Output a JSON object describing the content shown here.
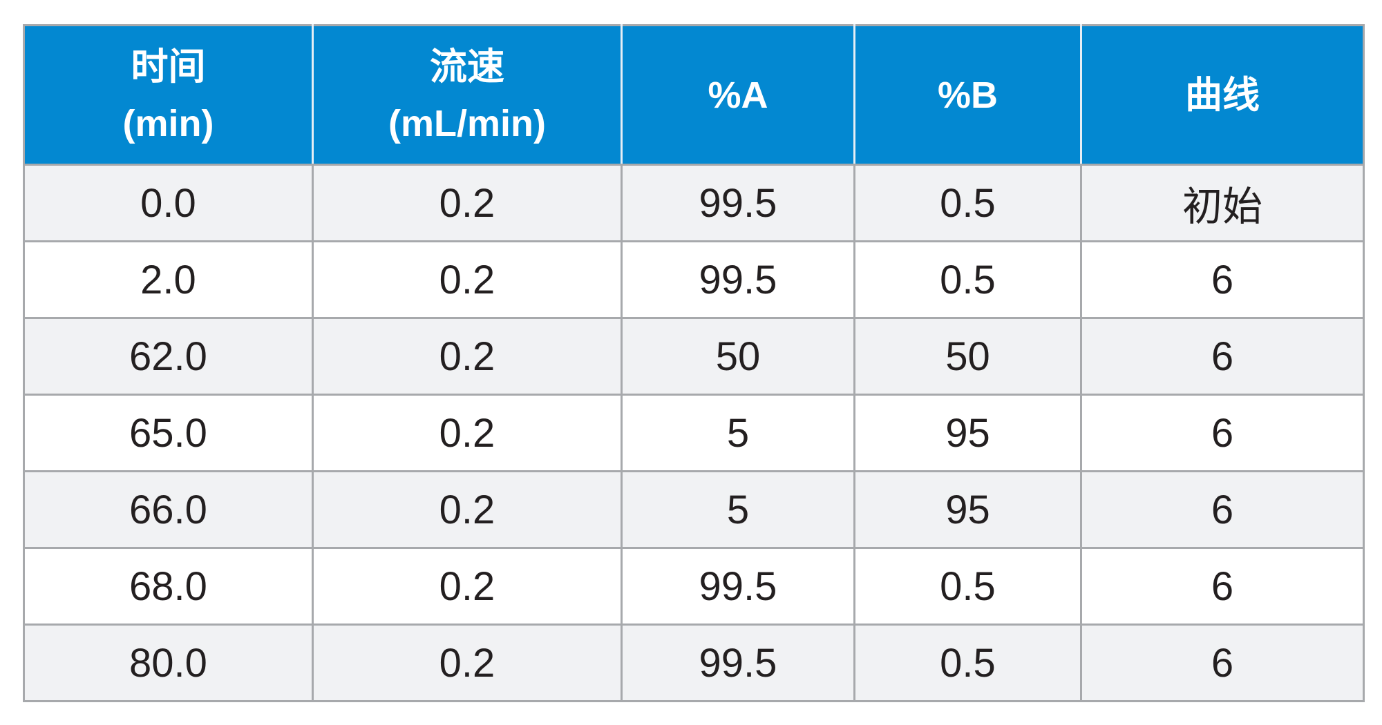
{
  "table": {
    "headers": [
      {
        "line1": "时间",
        "line2": "(min)"
      },
      {
        "line1": "流速",
        "line2": "(mL/min)"
      },
      {
        "line1": "%A",
        "line2": ""
      },
      {
        "line1": "%B",
        "line2": ""
      },
      {
        "line1": "曲线",
        "line2": ""
      }
    ],
    "rows": [
      [
        "0.0",
        "0.2",
        "99.5",
        "0.5",
        "初始"
      ],
      [
        "2.0",
        "0.2",
        "99.5",
        "0.5",
        "6"
      ],
      [
        "62.0",
        "0.2",
        "50",
        "50",
        "6"
      ],
      [
        "65.0",
        "0.2",
        "5",
        "95",
        "6"
      ],
      [
        "66.0",
        "0.2",
        "5",
        "95",
        "6"
      ],
      [
        "68.0",
        "0.2",
        "99.5",
        "0.5",
        "6"
      ],
      [
        "80.0",
        "0.2",
        "99.5",
        "0.5",
        "6"
      ]
    ]
  },
  "colors": {
    "header_bg": "#0388d1",
    "header_text": "#ffffff",
    "row_alt_bg": "#f1f2f4",
    "row_bg": "#ffffff",
    "border": "#a7a9ac",
    "cell_text": "#231f20"
  }
}
